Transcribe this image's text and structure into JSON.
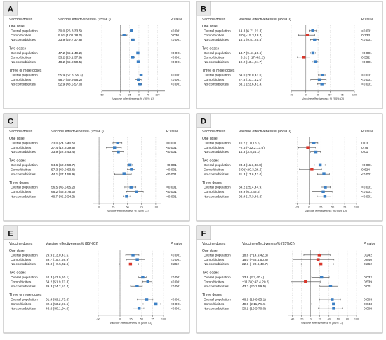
{
  "chart_data": [
    {
      "panel": "A",
      "type": "forest",
      "header": {
        "col1": "Vaccine doses",
        "col2": "Vaccine effectiveness% (95%CI)",
        "col3": "P value"
      },
      "xlabel": "Vaccine effectiveness % (95% CI)",
      "xlim": [
        -50,
        120
      ],
      "ticks": [
        -50,
        0,
        25,
        50,
        75,
        100
      ],
      "groups": [
        {
          "title": "One dose",
          "rows": [
            {
              "label": "Overall population",
              "text": "30.0 (26.3,33.5)",
              "est": 30.0,
              "lo": 26.3,
              "hi": 33.5,
              "p": "<0.001",
              "color": "#3b7fc4"
            },
            {
              "label": "Comorbidities",
              "text": "9.91 (1.01,18.0)",
              "est": 9.91,
              "lo": 1.01,
              "hi": 18.0,
              "p": "0.030",
              "color": "#3b7fc4"
            },
            {
              "label": "No comorbidities",
              "text": "33.9 (29.7,37.8)",
              "est": 33.9,
              "lo": 29.7,
              "hi": 37.8,
              "p": "<0.001",
              "color": "#3b7fc4"
            }
          ]
        },
        {
          "title": "Two doses",
          "rows": [
            {
              "label": "Overall population",
              "text": "47.2 (45.1,49.2)",
              "est": 47.2,
              "lo": 45.1,
              "hi": 49.2,
              "p": "<0.001",
              "color": "#3b7fc4"
            },
            {
              "label": "Comorbidities",
              "text": "33.2 (28.1,37.9)",
              "est": 33.2,
              "lo": 28.1,
              "hi": 37.9,
              "p": "<0.001",
              "color": "#3b7fc4"
            },
            {
              "label": "No comorbidities",
              "text": "48.2 (45.8,50.5)",
              "est": 48.2,
              "lo": 45.8,
              "hi": 50.5,
              "p": "<0.001",
              "color": "#3b7fc4"
            }
          ]
        },
        {
          "title": "Three or more doses",
          "rows": [
            {
              "label": "Overall population",
              "text": "55.9 (52.3, 59.3)",
              "est": 55.9,
              "lo": 52.3,
              "hi": 59.3,
              "p": "<0.001",
              "color": "#3b7fc4"
            },
            {
              "label": "Comorbidities",
              "text": "48.7 (39.9,56.2)",
              "est": 48.7,
              "lo": 39.9,
              "hi": 56.2,
              "p": "<0.001",
              "color": "#3b7fc4"
            },
            {
              "label": "No comorbidities",
              "text": "52.9 (48.5,57.0)",
              "est": 52.9,
              "lo": 48.5,
              "hi": 57.0,
              "p": "<0.001",
              "color": "#3b7fc4"
            }
          ]
        }
      ]
    },
    {
      "panel": "B",
      "type": "forest",
      "header": {
        "col1": "Vaccine doses",
        "col2": "Vaccine effectiveness% (95%CI)",
        "col3": "P value"
      },
      "xlabel": "Vaccine effectiveness % (95% CI)",
      "xlim": [
        -30,
        100
      ],
      "ticks": [
        -30,
        0,
        25,
        50,
        75,
        100
      ],
      "groups": [
        {
          "title": "One dose",
          "rows": [
            {
              "label": "Overall population",
              "text": "14.3 (6.71,21.3)",
              "est": 14.3,
              "lo": 6.71,
              "hi": 21.3,
              "p": "<0.001",
              "color": "#3b7fc4"
            },
            {
              "label": "Comorbidities",
              "text": "3.0 (−15.3,18.4)",
              "est": 3.0,
              "lo": -15.3,
              "hi": 18.4,
              "p": "0.733",
              "color": "#d9362b"
            },
            {
              "label": "No comorbidities",
              "text": "18.1 (9.51,25.8)",
              "est": 18.1,
              "lo": 9.51,
              "hi": 25.8,
              "p": "<0.001",
              "color": "#3b7fc4"
            }
          ]
        },
        {
          "title": "Two doses",
          "rows": [
            {
              "label": "Overall population",
              "text": "14.7 (9.41,19.6)",
              "est": 14.7,
              "lo": 9.41,
              "hi": 19.6,
              "p": "<0.001",
              "color": "#3b7fc4"
            },
            {
              "label": "Comorbidities",
              "text": "−3.81 (−17.4,8.2)",
              "est": -3.81,
              "lo": -17.4,
              "hi": 8.2,
              "p": "0.552",
              "color": "#d9362b"
            },
            {
              "label": "No comorbidities",
              "text": "19.2 (13.4,24.7)",
              "est": 19.2,
              "lo": 13.4,
              "hi": 24.7,
              "p": "<0.001",
              "color": "#3b7fc4"
            }
          ]
        },
        {
          "title": "Three or more doses",
          "rows": [
            {
              "label": "Overall population",
              "text": "34.0 (26.0,41.0)",
              "est": 34.0,
              "lo": 26.0,
              "hi": 41.0,
              "p": "<0.001",
              "color": "#3b7fc4"
            },
            {
              "label": "Comorbidities",
              "text": "27.8 (10.1,42.0)",
              "est": 27.8,
              "lo": 10.1,
              "hi": 42.0,
              "p": "<0.001",
              "color": "#3b7fc4"
            },
            {
              "label": "No comorbidities",
              "text": "33.1 (23.6,41.4)",
              "est": 33.1,
              "lo": 23.6,
              "hi": 41.4,
              "p": "<0.001",
              "color": "#3b7fc4"
            }
          ]
        }
      ]
    },
    {
      "panel": "C",
      "type": "forest",
      "header": {
        "col1": "Vaccine doses",
        "col2": "Vaccine effectiveness% (95%CI)",
        "col3": "P value"
      },
      "xlabel": "Vaccine effectiveness % (95% CI)",
      "xlim": [
        -10,
        110
      ],
      "ticks": [
        0,
        25,
        50,
        75,
        100
      ],
      "groups": [
        {
          "title": "One dose",
          "rows": [
            {
              "label": "Overall population",
              "text": "33.0 (24.6,40.5)",
              "est": 33.0,
              "lo": 24.6,
              "hi": 40.5,
              "p": "<0.001",
              "color": "#3b7fc4"
            },
            {
              "label": "Comorbidities",
              "text": "27.4 (12.8,39.5)",
              "est": 27.4,
              "lo": 12.8,
              "hi": 39.5,
              "p": "<0.001",
              "color": "#3b7fc4"
            },
            {
              "label": "No comorbidities",
              "text": "33.9 (22.8,43.4)",
              "est": 33.9,
              "lo": 22.8,
              "hi": 43.4,
              "p": "<0.001",
              "color": "#3b7fc4"
            }
          ]
        },
        {
          "title": "Two doses",
          "rows": [
            {
              "label": "Overall population",
              "text": "54.6 (50.0,58.7)",
              "est": 54.6,
              "lo": 50.0,
              "hi": 58.7,
              "p": "<0.001",
              "color": "#3b7fc4"
            },
            {
              "label": "Comorbidities",
              "text": "57.3 (49.9,63.6)",
              "est": 57.3,
              "lo": 49.9,
              "hi": 63.6,
              "p": "<0.001",
              "color": "#3b7fc4"
            },
            {
              "label": "No comorbidities",
              "text": "44.1 (27.4,56.9)",
              "est": 44.1,
              "lo": 27.4,
              "hi": 56.9,
              "p": "<0.001",
              "color": "#3b7fc4"
            }
          ]
        },
        {
          "title": "Three doses",
          "rows": [
            {
              "label": "Overall population",
              "text": "56.5 (45.5,65.2)",
              "est": 56.5,
              "lo": 45.5,
              "hi": 65.2,
              "p": "<0.001",
              "color": "#3b7fc4"
            },
            {
              "label": "Comorbidities",
              "text": "66.2 (48.3,78.0)",
              "est": 66.2,
              "lo": 48.3,
              "hi": 78.0,
              "p": "<0.001",
              "color": "#3b7fc4"
            },
            {
              "label": "No comorbidities",
              "text": "48.7 (42.3,54.5)",
              "est": 48.7,
              "lo": 42.3,
              "hi": 54.5,
              "p": "<0.001",
              "color": "#3b7fc4"
            }
          ]
        }
      ]
    },
    {
      "panel": "D",
      "type": "forest",
      "header": {
        "col1": "Vaccine doses",
        "col2": "Vaccine effectiveness% (95%CI)",
        "col3": "P value"
      },
      "xlabel": "Vaccine effectiveness % (95% CI)",
      "xlim": [
        -30,
        100
      ],
      "ticks": [
        -25,
        0,
        25,
        50,
        75,
        100
      ],
      "groups": [
        {
          "title": "One dose",
          "rows": [
            {
              "label": "Overall population",
              "text": "10.2 (1.0,18.6)",
              "est": 10.2,
              "lo": 1.0,
              "hi": 18.6,
              "p": "0.03",
              "color": "#3b7fc4"
            },
            {
              "label": "Comorbidities",
              "text": "−2.6 (−22.2,13.6)",
              "est": -2.6,
              "lo": -22.2,
              "hi": 13.6,
              "p": "0.76",
              "color": "#d9362b"
            },
            {
              "label": "No comorbidities",
              "text": "14.3 (3.5,24.0)",
              "est": 14.3,
              "lo": 3.5,
              "hi": 24.0,
              "p": "0.01",
              "color": "#3b7fc4"
            }
          ]
        },
        {
          "title": "Two doses",
          "rows": [
            {
              "label": "Overall population",
              "text": "23.4 (11.3,33.8)",
              "est": 23.4,
              "lo": 11.3,
              "hi": 33.8,
              "p": "<0.001",
              "color": "#3b7fc4"
            },
            {
              "label": "Comorbidities",
              "text": "6.0 (−20.3,26.6)",
              "est": 6.0,
              "lo": -20.3,
              "hi": 26.6,
              "p": "0.624",
              "color": "#d9362b"
            },
            {
              "label": "No comorbidities",
              "text": "31.3 (17.6,43.0)",
              "est": 31.3,
              "lo": 17.6,
              "hi": 43.0,
              "p": "<0.001",
              "color": "#3b7fc4"
            }
          ]
        },
        {
          "title": "Three doses",
          "rows": [
            {
              "label": "Overall population",
              "text": "34.2 (25.4,44.9)",
              "est": 34.2,
              "lo": 25.4,
              "hi": 44.9,
              "p": "<0.001",
              "color": "#3b7fc4"
            },
            {
              "label": "Comorbidities",
              "text": "29.9 (6.3,48.6)",
              "est": 29.9,
              "lo": 6.3,
              "hi": 48.6,
              "p": "<0.001",
              "color": "#3b7fc4"
            },
            {
              "label": "No comorbidities",
              "text": "33.4 (17.3,46.3)",
              "est": 33.4,
              "lo": 17.3,
              "hi": 46.3,
              "p": "<0.001",
              "color": "#3b7fc4"
            }
          ]
        }
      ]
    },
    {
      "panel": "E",
      "type": "forest",
      "header": {
        "col1": "Vaccine doses",
        "col2": "Vaccine effectiveness% (95%CI)",
        "col3": "P value"
      },
      "xlabel": "Vaccine effectiveness % (95% CI)",
      "xlim": [
        -50,
        100
      ],
      "ticks": [
        -50,
        0,
        25,
        50,
        75,
        100
      ],
      "groups": [
        {
          "title": "One dose",
          "rows": [
            {
              "label": "Overall population",
              "text": "29.9 (13.0,43.5)",
              "est": 29.9,
              "lo": 13.0,
              "hi": 43.5,
              "p": "<0.001",
              "color": "#3b7fc4"
            },
            {
              "label": "Comorbidities",
              "text": "39.7 (15.4,56.9)",
              "est": 39.7,
              "lo": 15.4,
              "hi": 56.9,
              "p": "<0.001",
              "color": "#3b7fc4"
            },
            {
              "label": "No comorbidities",
              "text": "24.0 (−0.5,42.6)",
              "est": 24.0,
              "lo": -0.5,
              "hi": 42.6,
              "p": "0.262",
              "color": "#d9362b"
            }
          ]
        },
        {
          "title": "Two doses",
          "rows": [
            {
              "label": "Overall population",
              "text": "52.3 (43.0,60.1)",
              "est": 52.3,
              "lo": 43.0,
              "hi": 60.1,
              "p": "<0.001",
              "color": "#3b7fc4"
            },
            {
              "label": "Comorbidities",
              "text": "64.2 (51.9,73.3)",
              "est": 64.2,
              "lo": 51.9,
              "hi": 73.3,
              "p": "<0.001",
              "color": "#3b7fc4"
            },
            {
              "label": "No comorbidities",
              "text": "39.3 (24.2,51.4)",
              "est": 39.3,
              "lo": 24.2,
              "hi": 51.4,
              "p": "<0.001",
              "color": "#3b7fc4"
            }
          ]
        },
        {
          "title": "Three or more doses",
          "rows": [
            {
              "label": "Overall population",
              "text": "61.4 (39.2,75.6)",
              "est": 61.4,
              "lo": 39.2,
              "hi": 75.6,
              "p": "<0.001",
              "color": "#3b7fc4"
            },
            {
              "label": "Comorbidities",
              "text": "82.6 (53.2,93.5)",
              "est": 82.6,
              "lo": 53.2,
              "hi": 93.5,
              "p": "<0.001",
              "color": "#3b7fc4"
            },
            {
              "label": "No comorbidities",
              "text": "43.8 (30.1,54.8)",
              "est": 43.8,
              "lo": 30.1,
              "hi": 54.8,
              "p": "<0.001",
              "color": "#3b7fc4"
            }
          ]
        }
      ]
    },
    {
      "panel": "F",
      "type": "forest",
      "header": {
        "col1": "Vaccine doses",
        "col2": "Vaccine effectiveness% (95%CI)",
        "col3": "P value"
      },
      "xlabel": "Vaccine effectiveness % (95% CI)",
      "xlim": [
        -50,
        100
      ],
      "ticks": [
        -40,
        -20,
        0,
        20,
        40,
        60,
        80,
        100
      ],
      "groups": [
        {
          "title": "One dose",
          "rows": [
            {
              "label": "Overall population",
              "text": "18.6 (−14.9,42.3)",
              "est": 18.6,
              "lo": -14.9,
              "hi": 42.3,
              "p": "0.242",
              "color": "#d9362b"
            },
            {
              "label": "Comorbidities",
              "text": "16.0 (−38.4,50.8)",
              "est": 16.0,
              "lo": -38.4,
              "hi": 50.8,
              "p": "0.840",
              "color": "#d9362b"
            },
            {
              "label": "No comorbidities",
              "text": "22.1 (−20.6,49.7)",
              "est": 22.1,
              "lo": -20.6,
              "hi": 49.7,
              "p": "0.262",
              "color": "#d9362b"
            }
          ]
        },
        {
          "title": "Two doses",
          "rows": [
            {
              "label": "Overall population",
              "text": "23.8 (2.2,40.4)",
              "est": 23.8,
              "lo": 2.2,
              "hi": 40.4,
              "p": "0.032",
              "color": "#3b7fc4"
            },
            {
              "label": "Comorbidities",
              "text": "−11.3 (−43.4,20.8)",
              "est": -11.3,
              "lo": -43.4,
              "hi": 20.8,
              "p": "0.539",
              "color": "#d9362b"
            },
            {
              "label": "No comorbidities",
              "text": "43.3 (20.1,59.5)",
              "est": 43.3,
              "lo": 20.1,
              "hi": 59.5,
              "p": "0.001",
              "color": "#3b7fc4"
            }
          ]
        },
        {
          "title": "Three doses",
          "rows": [
            {
              "label": "Overall population",
              "text": "46.9 (19.6,65.1)",
              "est": 46.9,
              "lo": 19.6,
              "hi": 65.1,
              "p": "0.003",
              "color": "#3b7fc4"
            },
            {
              "label": "Comorbidities",
              "text": "49.9 (2.11,74.4)",
              "est": 49.9,
              "lo": 2.11,
              "hi": 74.4,
              "p": "0.043",
              "color": "#3b7fc4"
            },
            {
              "label": "No comorbidities",
              "text": "50.2 (16.5,70.0)",
              "est": 50.2,
              "lo": 16.5,
              "hi": 70.0,
              "p": "0.008",
              "color": "#3b7fc4"
            }
          ]
        }
      ]
    }
  ]
}
